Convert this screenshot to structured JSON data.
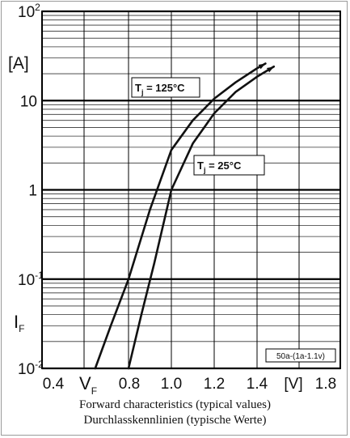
{
  "chart_data": {
    "type": "line",
    "xlabel": "V",
    "xlabel_sub": "F",
    "xunit": "[V]",
    "ylabel": "I",
    "ylabel_sub": "F",
    "yunit": "[A]",
    "x_ticks": [
      "0.4",
      "0.8",
      "1.0",
      "1.2",
      "1.4",
      "1.8"
    ],
    "xlim": [
      0.4,
      1.8
    ],
    "ylim": [
      0.01,
      100
    ],
    "yscale": "log",
    "y_tick_labels": [
      {
        "base": "10",
        "exp": "-2",
        "value": 0.01
      },
      {
        "base": "10",
        "exp": "-1",
        "value": 0.1
      },
      {
        "base": "1",
        "exp": "",
        "value": 1
      },
      {
        "base": "10",
        "exp": "",
        "value": 10
      },
      {
        "base": "10",
        "exp": "2",
        "value": 100
      }
    ],
    "grid": true,
    "series": [
      {
        "name": "T_j = 125°C",
        "label_main": "T",
        "label_sub": "j",
        "label_rest": " = 125°C",
        "x": [
          0.65,
          0.72,
          0.8,
          0.9,
          1.0,
          1.1,
          1.2,
          1.3,
          1.4,
          1.44
        ],
        "y": [
          0.01,
          0.03,
          0.1,
          0.6,
          2.8,
          6.0,
          10.5,
          16.0,
          23.0,
          26.0
        ]
      },
      {
        "name": "T_j = 25°C",
        "label_main": "T",
        "label_sub": "j",
        "label_rest": " = 25°C",
        "x": [
          0.8,
          0.86,
          0.92,
          1.0,
          1.1,
          1.2,
          1.3,
          1.4,
          1.48
        ],
        "y": [
          0.01,
          0.04,
          0.15,
          1.0,
          3.3,
          7.2,
          12.5,
          18.5,
          24.0
        ]
      }
    ],
    "annotation": "50a-(1a-1.1v)"
  },
  "caption": {
    "line1": "Forward characteristics (typical values)",
    "line2": "Durchlasskennlinien (typische Werte)"
  },
  "colors": {
    "line": "#111111",
    "grid_major": "#000000",
    "grid_minor": "#333333"
  }
}
